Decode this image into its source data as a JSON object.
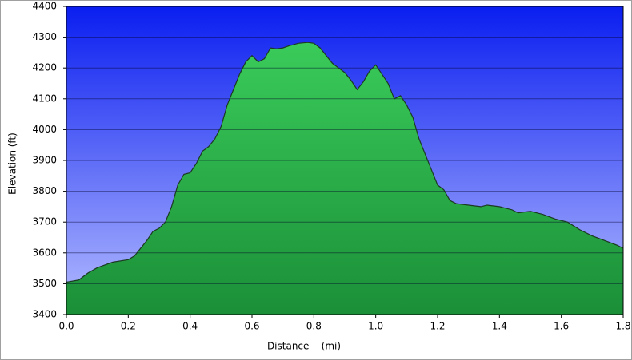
{
  "chart_data": {
    "type": "area",
    "xlabel": "Distance    (mi)",
    "ylabel": "Elevation (ft)",
    "color": "#22a845",
    "x": [
      0.0,
      0.04,
      0.07,
      0.1,
      0.15,
      0.2,
      0.22,
      0.26,
      0.28,
      0.3,
      0.32,
      0.34,
      0.36,
      0.38,
      0.4,
      0.42,
      0.44,
      0.46,
      0.48,
      0.5,
      0.52,
      0.54,
      0.56,
      0.58,
      0.6,
      0.62,
      0.64,
      0.66,
      0.68,
      0.7,
      0.72,
      0.75,
      0.78,
      0.8,
      0.82,
      0.84,
      0.86,
      0.88,
      0.9,
      0.92,
      0.94,
      0.96,
      0.98,
      1.0,
      1.02,
      1.04,
      1.06,
      1.08,
      1.1,
      1.12,
      1.14,
      1.16,
      1.18,
      1.2,
      1.22,
      1.24,
      1.26,
      1.3,
      1.34,
      1.36,
      1.4,
      1.44,
      1.46,
      1.5,
      1.54,
      1.58,
      1.62,
      1.66,
      1.7,
      1.74,
      1.78,
      1.8
    ],
    "values": [
      3505,
      3512,
      3535,
      3552,
      3570,
      3578,
      3590,
      3640,
      3670,
      3680,
      3700,
      3750,
      3820,
      3855,
      3860,
      3890,
      3930,
      3945,
      3970,
      4010,
      4080,
      4130,
      4180,
      4220,
      4240,
      4220,
      4230,
      4265,
      4262,
      4265,
      4272,
      4280,
      4283,
      4280,
      4265,
      4240,
      4215,
      4200,
      4185,
      4160,
      4130,
      4155,
      4190,
      4210,
      4180,
      4150,
      4100,
      4110,
      4080,
      4040,
      3970,
      3920,
      3870,
      3820,
      3805,
      3770,
      3760,
      3755,
      3750,
      3755,
      3750,
      3740,
      3730,
      3735,
      3725,
      3710,
      3700,
      3675,
      3655,
      3640,
      3625,
      3615
    ],
    "xlim": [
      0,
      1.8
    ],
    "ylim": [
      3400,
      4400
    ],
    "xticks": [
      {
        "value": 0,
        "label": "0.0"
      },
      0.2,
      0.4,
      0.6,
      0.8,
      {
        "value": 1,
        "label": "1.0"
      },
      1.2,
      1.4,
      1.6,
      1.8
    ],
    "yticks": [
      3400,
      3500,
      3600,
      3700,
      3800,
      3900,
      4000,
      4100,
      4200,
      4300,
      4400
    ],
    "grid": true
  }
}
